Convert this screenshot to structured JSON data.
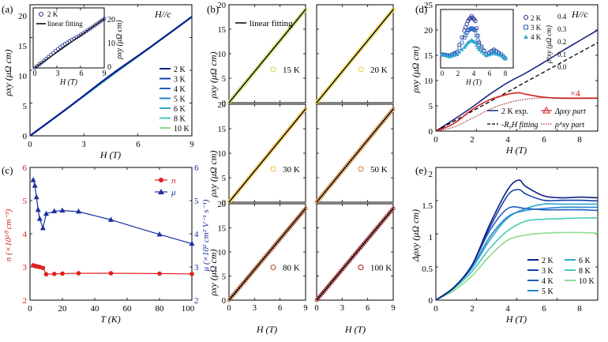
{
  "figure": {
    "a": {
      "label": "(a)",
      "condition": "H//c",
      "ylabel": "ρxy (μΩ cm)",
      "xlabel": "H (T)",
      "xticks": [
        "0",
        "3",
        "6",
        "9"
      ],
      "yticks": [
        "0",
        "5",
        "10",
        "15",
        "20"
      ],
      "legend": [
        "2 K",
        "3 K",
        "4 K",
        "5 K",
        "6 K",
        "8 K",
        "10 K"
      ],
      "inset": {
        "legend": [
          "2 K",
          "linear fitting"
        ],
        "ylabel": "ρxy (μΩ cm)",
        "xlabel": "H (T)",
        "xticks": [
          "0",
          "3",
          "6",
          "9"
        ],
        "yticks": [
          "0",
          "10",
          "20"
        ]
      }
    },
    "b": {
      "label": "(b)",
      "legend": "linear fitting",
      "ylabel": "ρxy (μΩ cm)",
      "xlabel": "H (T)",
      "xticks": [
        "0",
        "3",
        "6",
        "9"
      ],
      "yticks": [
        "0",
        "5",
        "10",
        "15",
        "20"
      ],
      "temps": [
        "15 K",
        "20 K",
        "30 K",
        "50 K",
        "80 K",
        "100 K"
      ]
    },
    "c": {
      "label": "(c)",
      "xlabel": "T (K)",
      "ylabel_left": "n (×10²⁰ cm⁻³)",
      "ylabel_right": "μ (×10² cm² V⁻¹ s⁻¹)",
      "xticks": [
        "0",
        "20",
        "40",
        "60",
        "80",
        "100"
      ],
      "yticks_left": [
        "2",
        "3",
        "4",
        "5",
        "6"
      ],
      "yticks_right": [
        "2",
        "3",
        "4",
        "5",
        "6"
      ],
      "legend_n": "n",
      "legend_mu": "μ"
    },
    "d": {
      "label": "(d)",
      "condition": "H//c",
      "ylabel": "ρxy (μΩ cm)",
      "xlabel": "H (T)",
      "xticks": [
        "0",
        "2",
        "4",
        "6",
        "8"
      ],
      "yticks": [
        "0",
        "5",
        "10",
        "15",
        "20",
        "25"
      ],
      "factor": "×4",
      "legend": [
        "2 K exp.",
        "Δρxy part",
        "-R₀H fitting",
        "ρᴬxy part"
      ],
      "inset": {
        "legend": [
          "2 K",
          "3 K",
          "4 K"
        ],
        "ylabel": "ρᴬxy (μΩ cm)",
        "xlabel": "H (T)",
        "xticks": [
          "0",
          "2",
          "4",
          "6",
          "8"
        ],
        "yticks": [
          "0.0",
          "0.1",
          "0.2",
          "0.3",
          "0.4"
        ]
      }
    },
    "e": {
      "label": "(e)",
      "ylabel": "Δρxy (μΩ cm)",
      "xlabel": "H (T)",
      "xticks": [
        "0",
        "2",
        "4",
        "6",
        "8"
      ],
      "yticks": [
        "0",
        "0.5",
        "1",
        "1.5",
        "2"
      ],
      "legend": [
        "2 K",
        "3 K",
        "4 K",
        "5 K",
        "6 K",
        "8 K",
        "10 K"
      ]
    }
  },
  "chart_data": [
    {
      "panel": "a",
      "type": "line",
      "xlabel": "H (T)",
      "ylabel": "ρxy (μΩ cm)",
      "xlim": [
        0,
        9
      ],
      "ylim": [
        0,
        22
      ],
      "series": [
        {
          "name": "2 K",
          "color": "#0b1f8a",
          "slope": 2.22,
          "bump": 0.25
        },
        {
          "name": "3 K",
          "color": "#1740a8",
          "slope": 2.22,
          "bump": 0.22
        },
        {
          "name": "4 K",
          "color": "#2060c0",
          "slope": 2.22,
          "bump": 0.19
        },
        {
          "name": "5 K",
          "color": "#2a86cc",
          "slope": 2.22,
          "bump": 0.15
        },
        {
          "name": "6 K",
          "color": "#30aacb",
          "slope": 2.22,
          "bump": 0.12
        },
        {
          "name": "8 K",
          "color": "#48c8b4",
          "slope": 2.22,
          "bump": 0.06
        },
        {
          "name": "10 K",
          "color": "#8fdc90",
          "slope": 2.22,
          "bump": 0.0
        }
      ]
    },
    {
      "panel": "a-inset",
      "type": "scatter",
      "xlim": [
        0,
        9
      ],
      "ylim": [
        0,
        25
      ],
      "series": [
        {
          "name": "2 K",
          "slope": 2.4,
          "bump": 1.2
        },
        {
          "name": "linear fitting",
          "slope": 2.4
        }
      ]
    },
    {
      "panel": "b",
      "type": "scatter",
      "xlim": [
        0,
        9
      ],
      "ylim": [
        0,
        21
      ],
      "series": [
        {
          "name": "15 K",
          "color": "#c8d84a",
          "slope": 2.22
        },
        {
          "name": "20 K",
          "color": "#e8d030",
          "slope": 2.22
        },
        {
          "name": "30 K",
          "color": "#f0b830",
          "slope": 2.22
        },
        {
          "name": "50 K",
          "color": "#d07820",
          "slope": 2.22
        },
        {
          "name": "80 K",
          "color": "#b04818",
          "slope": 2.22
        },
        {
          "name": "100 K",
          "color": "#a01818",
          "slope": 2.22
        }
      ]
    },
    {
      "panel": "c",
      "type": "line",
      "xlabel": "T (K)",
      "xlim": [
        0,
        100
      ],
      "series": [
        {
          "name": "n",
          "color": "#e02020",
          "axis": "left",
          "ylim": [
            2,
            6
          ],
          "x": [
            2,
            3,
            4,
            5,
            6,
            8,
            10,
            15,
            20,
            30,
            50,
            80,
            100
          ],
          "y": [
            3.05,
            3.03,
            3.02,
            3.01,
            3.0,
            2.97,
            2.78,
            2.79,
            2.8,
            2.81,
            2.81,
            2.8,
            2.79
          ]
        },
        {
          "name": "μ",
          "color": "#1a2fa0",
          "axis": "right",
          "ylim": [
            2,
            6
          ],
          "x": [
            2,
            3,
            4,
            5,
            6,
            8,
            10,
            15,
            20,
            30,
            50,
            80,
            100
          ],
          "y": [
            5.62,
            5.45,
            5.1,
            4.72,
            4.45,
            4.17,
            4.6,
            4.68,
            4.7,
            4.67,
            4.42,
            3.98,
            3.7
          ]
        }
      ]
    },
    {
      "panel": "d",
      "type": "line",
      "xlabel": "H (T)",
      "ylabel": "ρxy (μΩ cm)",
      "xlim": [
        0,
        9
      ],
      "ylim": [
        0,
        25
      ],
      "series": [
        {
          "name": "2 K exp.",
          "color": "#1a2a80",
          "x": [
            0,
            1,
            2,
            3,
            4,
            5,
            6,
            7,
            8,
            9
          ],
          "y": [
            0,
            2.3,
            4.7,
            7.3,
            9.6,
            11.5,
            13.6,
            15.8,
            17.9,
            20
          ]
        },
        {
          "name": "-R0H fitting",
          "color": "#000000",
          "x": [
            0,
            9
          ],
          "y": [
            0,
            17.5
          ]
        },
        {
          "name": "Δρxy part",
          "color": "#d02020",
          "x": [
            0,
            1,
            2,
            3,
            4,
            4.6,
            5,
            6,
            7,
            8,
            9
          ],
          "y": [
            0,
            1.5,
            4.2,
            6.2,
            7.3,
            7.6,
            7.3,
            6.7,
            6.5,
            6.5,
            6.5
          ]
        },
        {
          "name": "ρAxy part",
          "color": "#a03030",
          "x": [
            0,
            1,
            2,
            3,
            4,
            5,
            6,
            7,
            8,
            9
          ],
          "y": [
            0,
            0.8,
            2.5,
            4.3,
            5.6,
            6.3,
            6.6,
            6.6,
            6.6,
            6.6
          ]
        }
      ]
    },
    {
      "panel": "d-inset",
      "type": "scatter",
      "xlabel": "H (T)",
      "xlim": [
        0,
        9
      ],
      "ylim": [
        0,
        0.45
      ],
      "series": [
        {
          "name": "2 K",
          "color": "#1a2a90",
          "x": [
            0,
            1,
            2,
            3,
            3.5,
            4,
            4.5,
            5,
            6,
            7,
            8,
            8.8
          ],
          "y": [
            0.1,
            0.09,
            0.12,
            0.3,
            0.38,
            0.42,
            0.38,
            0.2,
            0.1,
            0.14,
            0.1,
            0.05
          ]
        },
        {
          "name": "3 K",
          "color": "#2060c0",
          "x": [
            0,
            1,
            2,
            3,
            3.5,
            4,
            4.5,
            5,
            6,
            7,
            8,
            8.8
          ],
          "y": [
            0.1,
            0.09,
            0.11,
            0.24,
            0.3,
            0.32,
            0.3,
            0.18,
            0.1,
            0.13,
            0.1,
            0.05
          ]
        },
        {
          "name": "4 K",
          "color": "#30a8d0",
          "x": [
            0,
            1,
            2,
            3,
            3.5,
            4,
            4.5,
            5,
            6,
            7,
            8,
            8.8
          ],
          "y": [
            0.1,
            0.08,
            0.1,
            0.16,
            0.2,
            0.22,
            0.2,
            0.14,
            0.09,
            0.11,
            0.09,
            0.05
          ]
        }
      ]
    },
    {
      "panel": "e",
      "type": "line",
      "xlabel": "H (T)",
      "ylabel": "Δρxy (μΩ cm)",
      "xlim": [
        0,
        9
      ],
      "ylim": [
        0,
        2.1
      ],
      "series": [
        {
          "name": "2 K",
          "color": "#0b1f8a",
          "x": [
            0,
            1,
            2,
            3,
            4,
            4.6,
            5,
            6,
            7,
            8,
            9
          ],
          "y": [
            0,
            0.2,
            0.55,
            1.2,
            1.75,
            1.9,
            1.8,
            1.65,
            1.62,
            1.63,
            1.62
          ]
        },
        {
          "name": "3 K",
          "color": "#1740a8",
          "x": [
            0,
            1,
            2,
            3,
            4,
            4.6,
            5,
            6,
            7,
            8,
            9
          ],
          "y": [
            0,
            0.2,
            0.55,
            1.15,
            1.66,
            1.75,
            1.68,
            1.58,
            1.58,
            1.58,
            1.57
          ]
        },
        {
          "name": "4 K",
          "color": "#2060c0",
          "x": [
            0,
            1,
            2,
            3,
            4,
            5,
            6,
            7,
            8,
            9
          ],
          "y": [
            0,
            0.2,
            0.55,
            1.1,
            1.45,
            1.45,
            1.43,
            1.43,
            1.43,
            1.42
          ]
        },
        {
          "name": "5 K",
          "color": "#2a86cc",
          "x": [
            0,
            1,
            2,
            3,
            4,
            5,
            6,
            7,
            8,
            9
          ],
          "y": [
            0,
            0.2,
            0.52,
            1.0,
            1.32,
            1.42,
            1.45,
            1.47,
            1.47,
            1.47
          ]
        },
        {
          "name": "6 K",
          "color": "#30aacb",
          "x": [
            0,
            1,
            2,
            3,
            4,
            5,
            6,
            7,
            8,
            9
          ],
          "y": [
            0,
            0.2,
            0.5,
            0.95,
            1.3,
            1.45,
            1.52,
            1.52,
            1.52,
            1.52
          ]
        },
        {
          "name": "8 K",
          "color": "#48c8b4",
          "x": [
            0,
            1,
            2,
            3,
            4,
            5,
            6,
            7,
            8,
            9
          ],
          "y": [
            0,
            0.18,
            0.45,
            0.82,
            1.1,
            1.25,
            1.28,
            1.29,
            1.3,
            1.3
          ]
        },
        {
          "name": "10 K",
          "color": "#8fdc90",
          "x": [
            0,
            1,
            2,
            3,
            4,
            5,
            6,
            7,
            8,
            9
          ],
          "y": [
            0,
            0.15,
            0.38,
            0.7,
            0.95,
            1.03,
            1.06,
            1.07,
            1.07,
            1.06
          ]
        }
      ]
    }
  ]
}
